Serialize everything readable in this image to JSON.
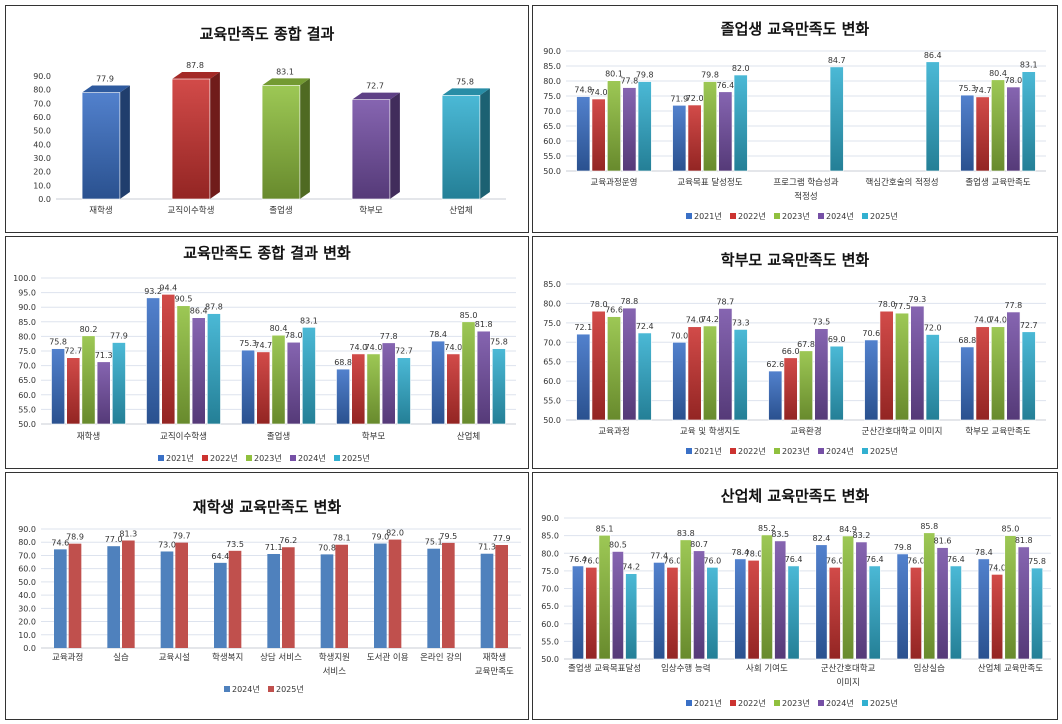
{
  "chart_data": [
    {
      "type": "bar",
      "style": "3d",
      "title": "교육만족도 종합 결과",
      "categories": [
        "재학생",
        "교직이수학생",
        "졸업생",
        "학부모",
        "산업체"
      ],
      "values": [
        77.9,
        87.8,
        83.1,
        72.7,
        75.8
      ],
      "bar_colors": [
        "#3a70c6",
        "#cc3330",
        "#90c03e",
        "#7650a6",
        "#32b0d0"
      ],
      "ylim": [
        0,
        90
      ],
      "ystep": 10,
      "grid": false,
      "legend": "none"
    },
    {
      "type": "bar",
      "title": "졸업생 교육만족도 변화",
      "categories": [
        "교육과정운영",
        "교육목표 달성정도",
        "프로그램 학습성과 적정성",
        "핵심간호술의 적정성",
        "졸업생 교육만족도"
      ],
      "series": [
        {
          "name": "2021년",
          "values": [
            74.8,
            71.9,
            null,
            null,
            75.3
          ]
        },
        {
          "name": "2022년",
          "values": [
            74.0,
            72.0,
            null,
            null,
            74.7
          ]
        },
        {
          "name": "2023년",
          "values": [
            80.1,
            79.8,
            null,
            null,
            80.4
          ]
        },
        {
          "name": "2024년",
          "values": [
            77.8,
            76.4,
            null,
            null,
            78.0
          ]
        },
        {
          "name": "2025년",
          "values": [
            79.8,
            82.0,
            84.7,
            86.4,
            83.1
          ]
        }
      ],
      "ylim": [
        50,
        90
      ],
      "ystep": 5,
      "grid": true,
      "legend": "bottom"
    },
    {
      "type": "bar",
      "title": "교육만족도 종합 결과 변화",
      "categories": [
        "재학생",
        "교직이수학생",
        "졸업생",
        "학부모",
        "산업체"
      ],
      "series": [
        {
          "name": "2021년",
          "values": [
            75.8,
            93.2,
            75.3,
            68.8,
            78.4
          ]
        },
        {
          "name": "2022년",
          "values": [
            72.7,
            94.4,
            74.7,
            74.0,
            74.0
          ]
        },
        {
          "name": "2023년",
          "values": [
            80.2,
            90.5,
            80.4,
            74.0,
            85.0
          ]
        },
        {
          "name": "2024년",
          "values": [
            71.3,
            86.4,
            78.0,
            77.8,
            81.8
          ]
        },
        {
          "name": "2025년",
          "values": [
            77.9,
            87.8,
            83.1,
            72.7,
            75.8
          ]
        }
      ],
      "ylim": [
        50,
        100
      ],
      "ystep": 5,
      "grid": true,
      "legend": "bottom"
    },
    {
      "type": "bar",
      "title": "학부모 교육만족도 변화",
      "categories": [
        "교육과정",
        "교육 및 학생지도",
        "교육환경",
        "군산간호대학교 이미지",
        "학부모 교육만족도"
      ],
      "series": [
        {
          "name": "2021년",
          "values": [
            72.1,
            70.0,
            62.6,
            70.6,
            68.8
          ]
        },
        {
          "name": "2022년",
          "values": [
            78.0,
            74.0,
            66.0,
            78.0,
            74.0
          ]
        },
        {
          "name": "2023년",
          "values": [
            76.6,
            74.2,
            67.8,
            77.5,
            74.0
          ]
        },
        {
          "name": "2024년",
          "values": [
            78.8,
            78.7,
            73.5,
            79.3,
            77.8
          ]
        },
        {
          "name": "2025년",
          "values": [
            72.4,
            73.3,
            69.0,
            72.0,
            72.7
          ]
        }
      ],
      "ylim": [
        50,
        85
      ],
      "ystep": 5,
      "grid": true,
      "legend": "bottom"
    },
    {
      "type": "bar",
      "title": "재학생 교육만족도 변화",
      "categories": [
        "교육과정",
        "실습",
        "교육시설",
        "학생복지",
        "상담 서비스",
        "학생지원 서비스",
        "도서관 이용",
        "온라인 강의",
        "재학생 교육만족도"
      ],
      "series": [
        {
          "name": "2024년",
          "values": [
            74.6,
            77.0,
            73.0,
            64.4,
            71.1,
            70.8,
            79.0,
            75.1,
            71.3
          ]
        },
        {
          "name": "2025년",
          "values": [
            78.9,
            81.3,
            79.7,
            73.5,
            76.2,
            78.1,
            82.0,
            79.5,
            77.9
          ]
        }
      ],
      "ylim": [
        0,
        90
      ],
      "ystep": 10,
      "grid": true,
      "legend": "bottom"
    },
    {
      "type": "bar",
      "title": "산업체 교육만족도 변화",
      "categories": [
        "졸업생 교육목표달성",
        "임상수행 능력",
        "사회 기여도",
        "군산간호대학교 이미지",
        "임상실습",
        "산업체 교육만족도"
      ],
      "series": [
        {
          "name": "2021년",
          "values": [
            76.4,
            77.4,
            78.4,
            82.4,
            79.8,
            78.4
          ]
        },
        {
          "name": "2022년",
          "values": [
            76.0,
            76.0,
            78.0,
            76.0,
            76.0,
            74.0
          ]
        },
        {
          "name": "2023년",
          "values": [
            85.1,
            83.8,
            85.2,
            84.9,
            85.8,
            85.0
          ]
        },
        {
          "name": "2024년",
          "values": [
            80.5,
            80.7,
            83.5,
            83.2,
            81.6,
            81.8
          ]
        },
        {
          "name": "2025년",
          "values": [
            74.2,
            76.0,
            76.4,
            76.4,
            76.4,
            75.8
          ]
        }
      ],
      "ylim": [
        50,
        90
      ],
      "ystep": 5,
      "grid": true,
      "legend": "bottom"
    }
  ],
  "colors": {
    "five_year": [
      "#3a70c6",
      "#cc3330",
      "#90c03e",
      "#7650a6",
      "#32b0d0"
    ],
    "two_year": [
      "#4f81bd",
      "#c0504d"
    ]
  }
}
